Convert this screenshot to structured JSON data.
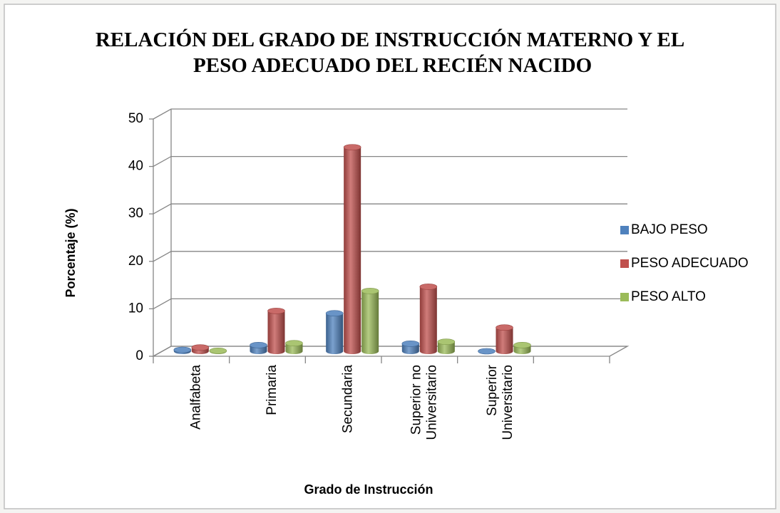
{
  "chart_data": {
    "type": "bar3d",
    "title": "RELACIÓN DEL GRADO DE INSTRUCCIÓN MATERNO Y EL PESO ADECUADO DEL RECIÉN NACIDO",
    "x_label": "Grado de Instrucción",
    "y_label": "Porcentaje (%)",
    "categories": [
      "Analfabeta",
      "Primaria",
      "Secundaria",
      "Superior no Universitario",
      "Superior Universitario",
      null
    ],
    "series": [
      {
        "name": "BAJO PESO",
        "color": "#4f81bd",
        "values": [
          0.3,
          1.3,
          8,
          1.6,
          0,
          null
        ]
      },
      {
        "name": "PESO ADECUADO",
        "color": "#c0504d",
        "values": [
          0.8,
          8.5,
          43,
          13.6,
          5,
          null
        ]
      },
      {
        "name": "PESO ALTO",
        "color": "#9bbb59",
        "values": [
          0.1,
          1.7,
          12.7,
          2,
          1.3,
          null
        ]
      }
    ],
    "ylim": [
      0,
      50
    ],
    "yticks": [
      0,
      10,
      20,
      30,
      40,
      50
    ],
    "grid": true,
    "legend": "right"
  }
}
